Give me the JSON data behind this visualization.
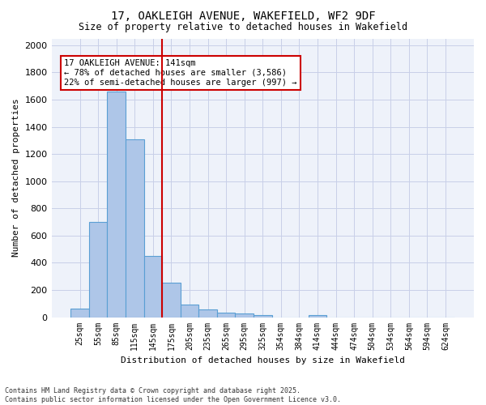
{
  "title_line1": "17, OAKLEIGH AVENUE, WAKEFIELD, WF2 9DF",
  "title_line2": "Size of property relative to detached houses in Wakefield",
  "xlabel": "Distribution of detached houses by size in Wakefield",
  "ylabel": "Number of detached properties",
  "footnote": "Contains HM Land Registry data © Crown copyright and database right 2025.\nContains public sector information licensed under the Open Government Licence v3.0.",
  "annotation_line1": "17 OAKLEIGH AVENUE: 141sqm",
  "annotation_line2": "← 78% of detached houses are smaller (3,586)",
  "annotation_line3": "22% of semi-detached houses are larger (997) →",
  "bar_values": [
    65,
    700,
    1660,
    1310,
    450,
    255,
    90,
    55,
    35,
    25,
    15,
    0,
    0,
    15,
    0,
    0,
    0,
    0,
    0,
    0,
    0
  ],
  "bar_labels": [
    "25sqm",
    "55sqm",
    "85sqm",
    "115sqm",
    "145sqm",
    "175sqm",
    "205sqm",
    "235sqm",
    "265sqm",
    "295sqm",
    "325sqm",
    "354sqm",
    "384sqm",
    "414sqm",
    "444sqm",
    "474sqm",
    "504sqm",
    "534sqm",
    "564sqm",
    "594sqm",
    "624sqm"
  ],
  "ylim": [
    0,
    2050
  ],
  "yticks": [
    0,
    200,
    400,
    600,
    800,
    1000,
    1200,
    1400,
    1600,
    1800,
    2000
  ],
  "bar_color": "#aec6e8",
  "bar_edge_color": "#5a9fd4",
  "vline_x": 4.5,
  "vline_color": "#cc0000",
  "background_color": "#eef2fa",
  "grid_color": "#c8cfe8"
}
